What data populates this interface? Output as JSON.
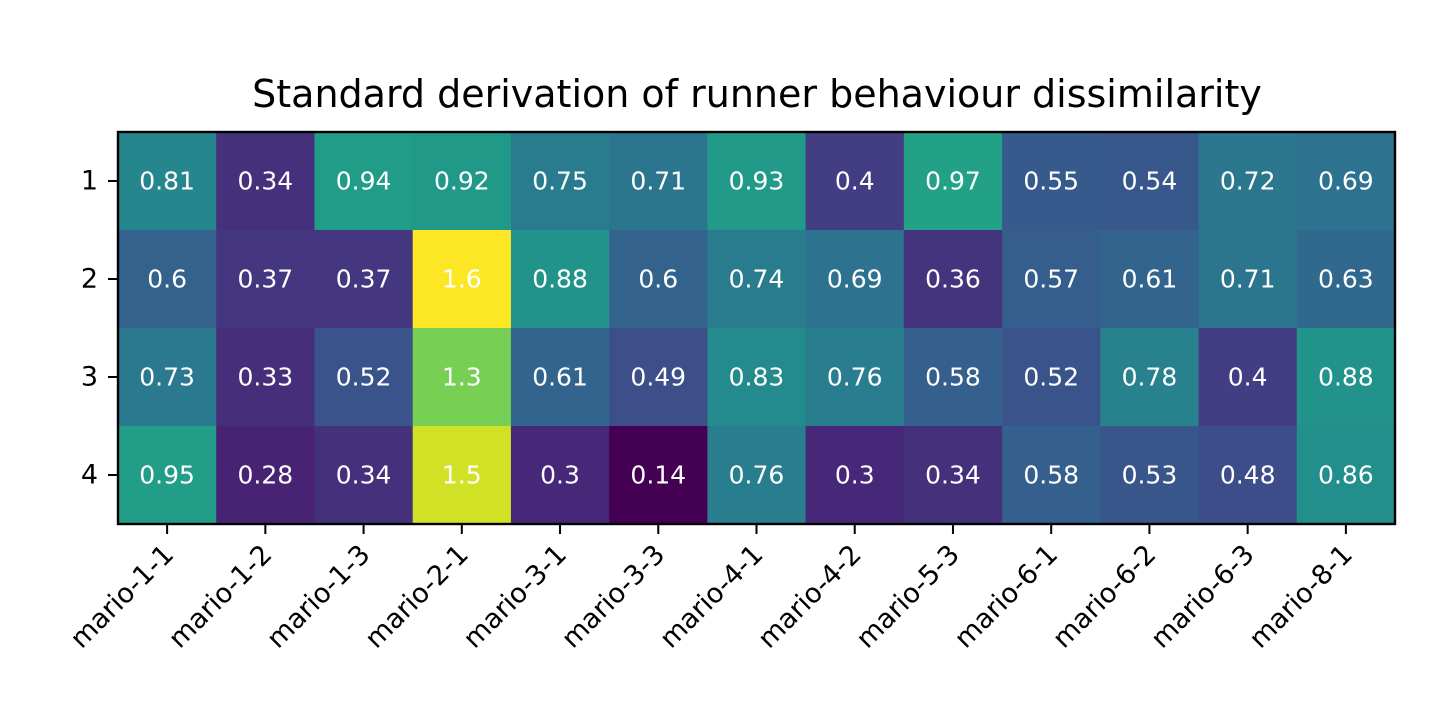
{
  "chart_data": {
    "type": "heatmap",
    "title": "Standard derivation of runner behaviour dissimilarity",
    "x_categories": [
      "mario-1-1",
      "mario-1-2",
      "mario-1-3",
      "mario-2-1",
      "mario-3-1",
      "mario-3-3",
      "mario-4-1",
      "mario-4-2",
      "mario-5-3",
      "mario-6-1",
      "mario-6-2",
      "mario-6-3",
      "mario-8-1"
    ],
    "y_categories": [
      "1",
      "2",
      "3",
      "4"
    ],
    "values": [
      [
        0.81,
        0.34,
        0.94,
        0.92,
        0.75,
        0.71,
        0.93,
        0.4,
        0.97,
        0.55,
        0.54,
        0.72,
        0.69
      ],
      [
        0.6,
        0.37,
        0.37,
        1.6,
        0.88,
        0.6,
        0.74,
        0.69,
        0.36,
        0.57,
        0.61,
        0.71,
        0.63
      ],
      [
        0.73,
        0.33,
        0.52,
        1.3,
        0.61,
        0.49,
        0.83,
        0.76,
        0.58,
        0.52,
        0.78,
        0.4,
        0.88
      ],
      [
        0.95,
        0.28,
        0.34,
        1.5,
        0.3,
        0.14,
        0.76,
        0.3,
        0.34,
        0.58,
        0.53,
        0.48,
        0.86
      ]
    ],
    "labels": [
      [
        "0.81",
        "0.34",
        "0.94",
        "0.92",
        "0.75",
        "0.71",
        "0.93",
        "0.4",
        "0.97",
        "0.55",
        "0.54",
        "0.72",
        "0.69"
      ],
      [
        "0.6",
        "0.37",
        "0.37",
        "1.6",
        "0.88",
        "0.6",
        "0.74",
        "0.69",
        "0.36",
        "0.57",
        "0.61",
        "0.71",
        "0.63"
      ],
      [
        "0.73",
        "0.33",
        "0.52",
        "1.3",
        "0.61",
        "0.49",
        "0.83",
        "0.76",
        "0.58",
        "0.52",
        "0.78",
        "0.4",
        "0.88"
      ],
      [
        "0.95",
        "0.28",
        "0.34",
        "1.5",
        "0.3",
        "0.14",
        "0.76",
        "0.3",
        "0.34",
        "0.58",
        "0.53",
        "0.48",
        "0.86"
      ]
    ],
    "colormap": "viridis",
    "vmin": 0.14,
    "vmax": 1.6,
    "cell_text_color": "#ffffff",
    "grid": false,
    "legend": "none"
  }
}
